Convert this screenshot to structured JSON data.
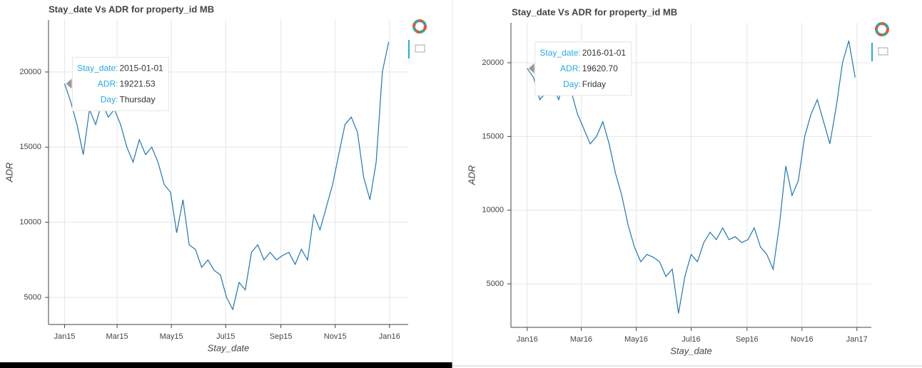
{
  "chart_data": [
    {
      "type": "line",
      "title": "Stay_date Vs ADR for property_id MB",
      "x_label": "Stay_date",
      "y_label": "ADR",
      "xlim": [
        "2014-12-14",
        "2016-01-22"
      ],
      "ylim": [
        3200,
        23460
      ],
      "xticks": [
        {
          "value": "2015-01-01",
          "label": "Jan15"
        },
        {
          "value": "2015-03-01",
          "label": "Mar15"
        },
        {
          "value": "2015-05-01",
          "label": "May15"
        },
        {
          "value": "2015-07-01",
          "label": "Jul15"
        },
        {
          "value": "2015-09-01",
          "label": "Sep15"
        },
        {
          "value": "2015-11-01",
          "label": "Nov15"
        },
        {
          "value": "2016-01-01",
          "label": "Jan16"
        }
      ],
      "yticks": [
        5000,
        10000,
        15000,
        20000
      ],
      "grid": true,
      "x": [
        "2015-01-01",
        "2015-01-08",
        "2015-01-15",
        "2015-01-22",
        "2015-01-29",
        "2015-02-05",
        "2015-02-12",
        "2015-02-19",
        "2015-02-26",
        "2015-03-05",
        "2015-03-12",
        "2015-03-19",
        "2015-03-26",
        "2015-04-02",
        "2015-04-09",
        "2015-04-16",
        "2015-04-23",
        "2015-04-30",
        "2015-05-07",
        "2015-05-14",
        "2015-05-21",
        "2015-05-28",
        "2015-06-04",
        "2015-06-11",
        "2015-06-18",
        "2015-06-25",
        "2015-07-02",
        "2015-07-09",
        "2015-07-16",
        "2015-07-23",
        "2015-07-30",
        "2015-08-06",
        "2015-08-13",
        "2015-08-20",
        "2015-08-27",
        "2015-09-03",
        "2015-09-10",
        "2015-09-17",
        "2015-09-24",
        "2015-10-01",
        "2015-10-08",
        "2015-10-15",
        "2015-10-22",
        "2015-10-29",
        "2015-11-05",
        "2015-11-12",
        "2015-11-19",
        "2015-11-26",
        "2015-12-03",
        "2015-12-10",
        "2015-12-17",
        "2015-12-24",
        "2015-12-31"
      ],
      "series": [
        {
          "name": "ADR",
          "color": "#1f77b4",
          "values": [
            19221.53,
            18000,
            16500,
            14500,
            17500,
            16500,
            18000,
            17000,
            17500,
            16500,
            15000,
            14000,
            15500,
            14500,
            15000,
            14000,
            12500,
            12000,
            9300,
            11500,
            8500,
            8200,
            7000,
            7500,
            6800,
            6500,
            5000,
            4200,
            6000,
            5500,
            8000,
            8500,
            7500,
            8000,
            7500,
            7800,
            8000,
            7200,
            8200,
            7500,
            10500,
            9500,
            11000,
            12500,
            14500,
            16500,
            17000,
            16000,
            13000,
            11500,
            14000,
            20000,
            22000
          ]
        }
      ],
      "tooltip": [
        {
          "label": "Stay_date:",
          "value": "2015-01-01"
        },
        {
          "label": "ADR:",
          "value": "19221.53"
        },
        {
          "label": "Day:",
          "value": "Thursday"
        }
      ]
    },
    {
      "type": "line",
      "title": "Stay_date Vs ADR for property_id MB",
      "x_label": "Stay_date",
      "y_label": "ADR",
      "xlim": [
        "2015-12-14",
        "2017-01-17"
      ],
      "ylim": [
        2050,
        22710
      ],
      "xticks": [
        {
          "value": "2016-01-01",
          "label": "Jan16"
        },
        {
          "value": "2016-03-01",
          "label": "Mar16"
        },
        {
          "value": "2016-05-01",
          "label": "May16"
        },
        {
          "value": "2016-07-01",
          "label": "Jul16"
        },
        {
          "value": "2016-09-01",
          "label": "Sep16"
        },
        {
          "value": "2016-11-01",
          "label": "Nov16"
        },
        {
          "value": "2017-01-01",
          "label": "Jan17"
        }
      ],
      "yticks": [
        5000,
        10000,
        15000,
        20000
      ],
      "grid": true,
      "x": [
        "2016-01-01",
        "2016-01-08",
        "2016-01-15",
        "2016-01-22",
        "2016-01-29",
        "2016-02-05",
        "2016-02-12",
        "2016-02-19",
        "2016-02-26",
        "2016-03-04",
        "2016-03-11",
        "2016-03-18",
        "2016-03-25",
        "2016-04-01",
        "2016-04-08",
        "2016-04-15",
        "2016-04-22",
        "2016-04-29",
        "2016-05-06",
        "2016-05-13",
        "2016-05-20",
        "2016-05-27",
        "2016-06-03",
        "2016-06-10",
        "2016-06-17",
        "2016-06-24",
        "2016-07-01",
        "2016-07-08",
        "2016-07-15",
        "2016-07-22",
        "2016-07-29",
        "2016-08-05",
        "2016-08-12",
        "2016-08-19",
        "2016-08-26",
        "2016-09-02",
        "2016-09-09",
        "2016-09-16",
        "2016-09-23",
        "2016-09-30",
        "2016-10-07",
        "2016-10-14",
        "2016-10-21",
        "2016-10-28",
        "2016-11-04",
        "2016-11-11",
        "2016-11-18",
        "2016-11-25",
        "2016-12-02",
        "2016-12-09",
        "2016-12-16",
        "2016-12-23",
        "2016-12-30"
      ],
      "series": [
        {
          "name": "ADR",
          "color": "#1f77b4",
          "values": [
            19620.7,
            19000,
            17500,
            18000,
            18500,
            17500,
            19000,
            18000,
            16500,
            15500,
            14500,
            15000,
            16000,
            14500,
            12500,
            11000,
            9000,
            7500,
            6500,
            7000,
            6800,
            6500,
            5500,
            6000,
            3000,
            5500,
            7000,
            6500,
            7800,
            8500,
            8000,
            8800,
            8000,
            8200,
            7800,
            8000,
            8800,
            7500,
            7000,
            6000,
            9000,
            13000,
            11000,
            12000,
            15000,
            16500,
            17500,
            16000,
            14500,
            17000,
            20000,
            21500,
            19000
          ]
        }
      ],
      "tooltip": [
        {
          "label": "Stay_date:",
          "value": "2016-01-01"
        },
        {
          "label": "ADR:",
          "value": "19620.70"
        },
        {
          "label": "Day:",
          "value": "Friday"
        }
      ]
    }
  ]
}
